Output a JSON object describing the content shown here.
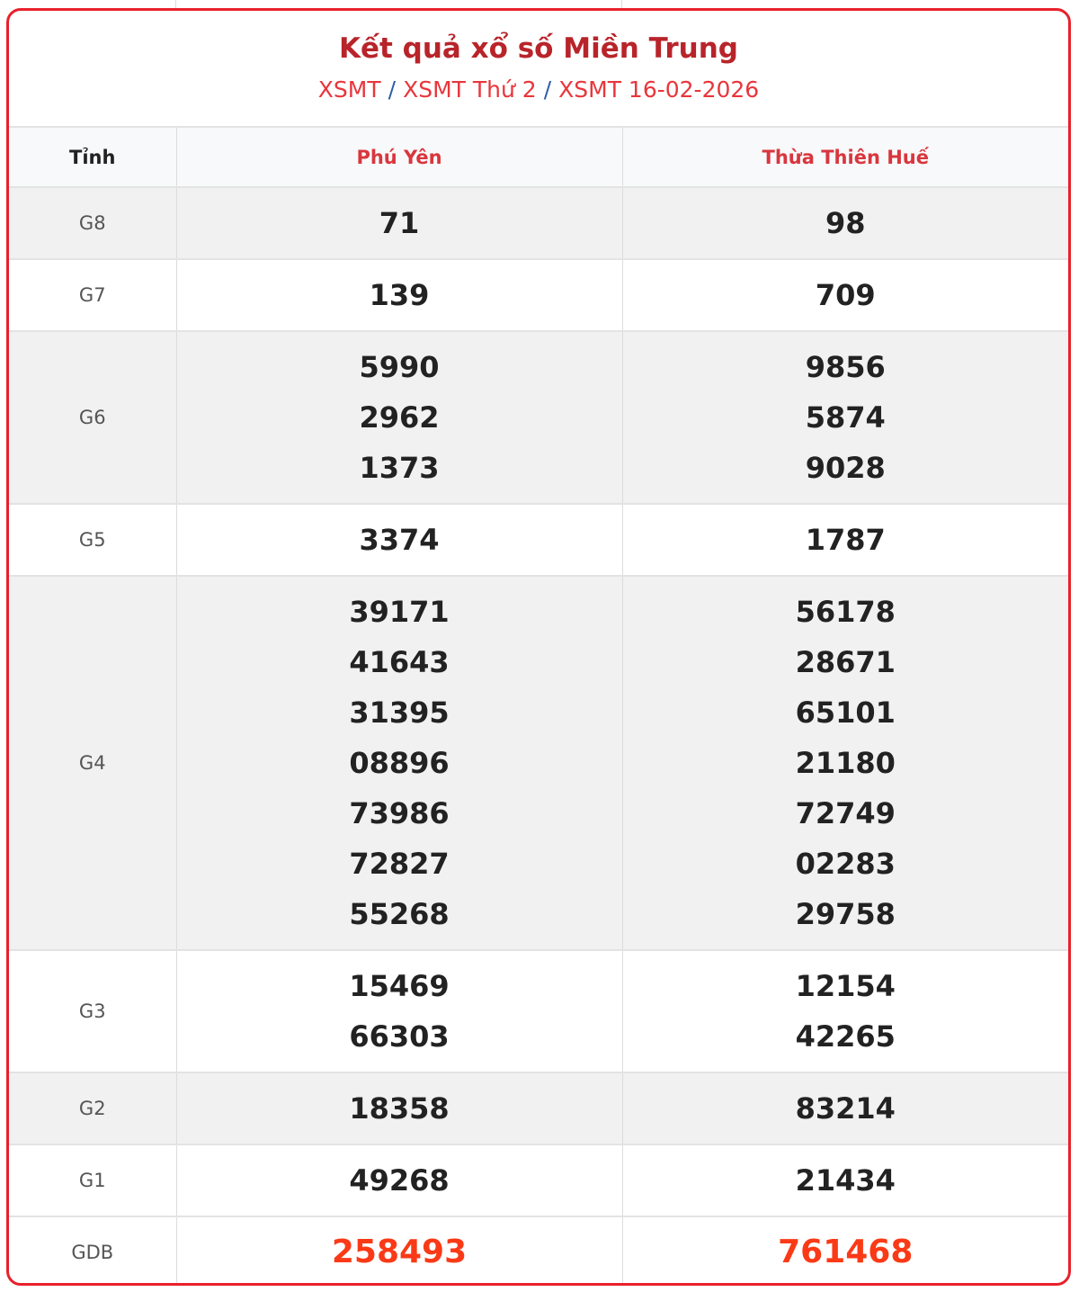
{
  "header": {
    "title": "Kết quả xổ số Miền Trung",
    "breadcrumb": [
      "XSMT",
      "XSMT Thứ 2",
      "XSMT 16-02-2026"
    ],
    "separator": "/"
  },
  "table": {
    "label_header": "Tỉnh",
    "provinces": [
      "Phú Yên",
      "Thừa Thiên Huế"
    ],
    "rows": [
      {
        "label": "G8",
        "values": [
          [
            "71"
          ],
          [
            "98"
          ]
        ]
      },
      {
        "label": "G7",
        "values": [
          [
            "139"
          ],
          [
            "709"
          ]
        ]
      },
      {
        "label": "G6",
        "values": [
          [
            "5990",
            "2962",
            "1373"
          ],
          [
            "9856",
            "5874",
            "9028"
          ]
        ]
      },
      {
        "label": "G5",
        "values": [
          [
            "3374"
          ],
          [
            "1787"
          ]
        ]
      },
      {
        "label": "G4",
        "values": [
          [
            "39171",
            "41643",
            "31395",
            "08896",
            "73986",
            "72827",
            "55268"
          ],
          [
            "56178",
            "28671",
            "65101",
            "21180",
            "72749",
            "02283",
            "29758"
          ]
        ]
      },
      {
        "label": "G3",
        "values": [
          [
            "15469",
            "66303"
          ],
          [
            "12154",
            "42265"
          ]
        ]
      },
      {
        "label": "G2",
        "values": [
          [
            "18358"
          ],
          [
            "83214"
          ]
        ]
      },
      {
        "label": "G1",
        "values": [
          [
            "49268"
          ],
          [
            "21434"
          ]
        ]
      },
      {
        "label": "GDB",
        "values": [
          [
            "258493"
          ],
          [
            "761468"
          ]
        ]
      }
    ]
  },
  "colors": {
    "border": "#e8212b",
    "title": "#b8242a",
    "link": "#e8363c",
    "special_prize": "#fa3a17"
  }
}
